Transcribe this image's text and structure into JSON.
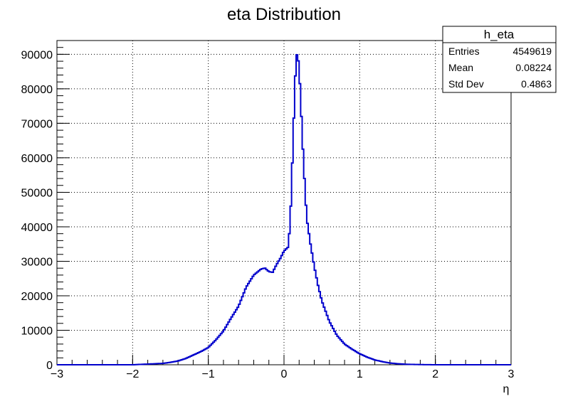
{
  "chart_data": {
    "type": "histogram",
    "title": "eta Distribution",
    "xlabel": "η",
    "ylabel": "",
    "xlim": [
      -3,
      3
    ],
    "ylim": [
      0,
      94000
    ],
    "grid": true,
    "line_color": "#0000cc",
    "x_ticks": [
      "−3",
      "−2",
      "−1",
      "0",
      "1",
      "2",
      "3"
    ],
    "y_ticks": [
      "0",
      "10000",
      "20000",
      "30000",
      "40000",
      "50000",
      "60000",
      "70000",
      "80000",
      "90000"
    ],
    "series": [
      {
        "x": [
          -3.0,
          -2.0,
          -1.8,
          -1.6,
          -1.5,
          -1.4,
          -1.3,
          -1.2,
          -1.1,
          -1.0,
          -0.9,
          -0.8,
          -0.7,
          -0.6,
          -0.5,
          -0.4,
          -0.3,
          -0.25,
          -0.2,
          -0.15,
          -0.1,
          -0.05,
          0.0,
          0.05,
          0.08,
          0.1,
          0.12,
          0.14,
          0.16,
          0.18,
          0.2,
          0.22,
          0.24,
          0.26,
          0.28,
          0.3,
          0.35,
          0.4,
          0.45,
          0.5,
          0.6,
          0.7,
          0.8,
          0.9,
          1.0,
          1.1,
          1.2,
          1.3,
          1.4,
          1.5,
          1.6,
          1.8,
          2.0,
          3.0
        ],
        "y": [
          0,
          0,
          200,
          400,
          700,
          1100,
          1800,
          2800,
          3800,
          5000,
          7200,
          9800,
          13500,
          17000,
          22500,
          26000,
          27800,
          28000,
          27000,
          26800,
          29000,
          30800,
          33000,
          34000,
          40000,
          52000,
          65000,
          78000,
          89500,
          90200,
          86000,
          77000,
          67000,
          58000,
          50000,
          42500,
          35000,
          28500,
          23000,
          18500,
          12500,
          8500,
          6000,
          4500,
          3200,
          2200,
          1400,
          900,
          500,
          300,
          150,
          50,
          0,
          0
        ]
      }
    ]
  },
  "stats": {
    "name": "h_eta",
    "rows": [
      {
        "label": "Entries",
        "value": "4549619"
      },
      {
        "label": "Mean",
        "value": "0.08224"
      },
      {
        "label": "Std Dev",
        "value": "0.4863"
      }
    ]
  }
}
